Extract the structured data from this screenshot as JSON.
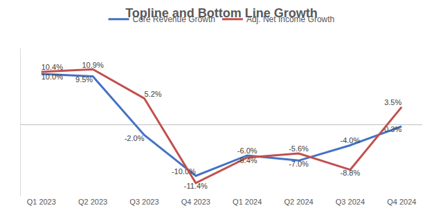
{
  "chart_data": {
    "type": "line",
    "title": "Topline and Bottom Line Growth",
    "categories": [
      "Q1 2023",
      "Q2 2023",
      "Q3 2023",
      "Q4 2023",
      "Q1 2024",
      "Q2 2024",
      "Q3 2024",
      "Q4 2024"
    ],
    "series": [
      {
        "name": "Core Revenue Growth",
        "color": "#4472C4",
        "values": [
          10.0,
          9.5,
          -2.0,
          -10.0,
          -6.0,
          -7.0,
          -4.0,
          -0.3
        ],
        "value_labels": [
          "10.0%",
          "9.5%",
          "-2.0%",
          "-10.0%",
          "-6.0%",
          "-7.0%",
          "-4.0%",
          "-0.3%"
        ]
      },
      {
        "name": "Adj. Net Income Growth",
        "color": "#C0504D",
        "values": [
          10.4,
          10.9,
          5.2,
          -11.4,
          -6.4,
          -5.6,
          -8.8,
          3.5
        ],
        "value_labels": [
          "10.4%",
          "10.9%",
          "5.2%",
          "-11.4%",
          "-6.4%",
          "-5.6%",
          "-8.8%",
          "3.5%"
        ]
      }
    ],
    "ylim": [
      -14,
      15
    ],
    "grid": false,
    "legend": "top",
    "data_labels": true,
    "tick_labels": "x"
  }
}
